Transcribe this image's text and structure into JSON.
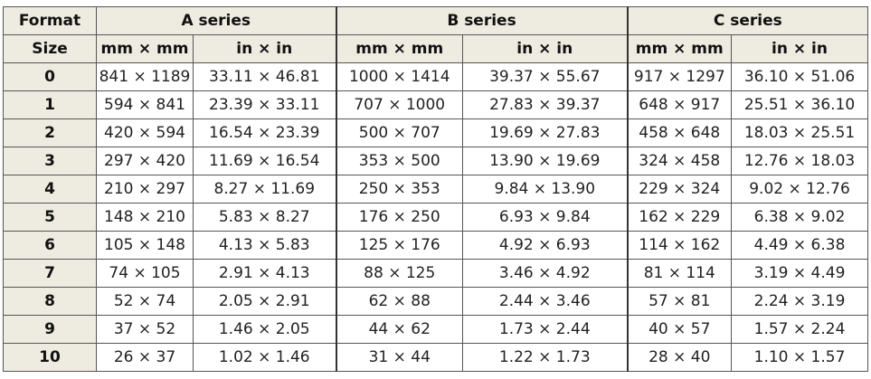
{
  "header": {
    "format": "Format",
    "series": [
      "A series",
      "B series",
      "C series"
    ]
  },
  "subheader": {
    "size": "Size",
    "units": [
      "mm × mm",
      "in × in",
      "mm × mm",
      "in × in",
      "mm × mm",
      "in × in"
    ]
  },
  "rows": [
    [
      "0",
      "841 × 1189",
      "33.11 × 46.81",
      "1000 × 1414",
      "39.37 × 55.67",
      "917 × 1297",
      "36.10 × 51.06"
    ],
    [
      "1",
      "594 × 841",
      "23.39 × 33.11",
      "707 × 1000",
      "27.83 × 39.37",
      "648 × 917",
      "25.51 × 36.10"
    ],
    [
      "2",
      "420 × 594",
      "16.54 × 23.39",
      "500 × 707",
      "19.69 × 27.83",
      "458 × 648",
      "18.03 × 25.51"
    ],
    [
      "3",
      "297 × 420",
      "11.69 × 16.54",
      "353 × 500",
      "13.90 × 19.69",
      "324 × 458",
      "12.76 × 18.03"
    ],
    [
      "4",
      "210 × 297",
      "8.27 × 11.69",
      "250 × 353",
      "9.84 × 13.90",
      "229 × 324",
      "9.02 × 12.76"
    ],
    [
      "5",
      "148 × 210",
      "5.83 × 8.27",
      "176 × 250",
      "6.93 × 9.84",
      "162 × 229",
      "6.38 × 9.02"
    ],
    [
      "6",
      "105 × 148",
      "4.13 × 5.83",
      "125 × 176",
      "4.92 × 6.93",
      "114 × 162",
      "4.49 × 6.38"
    ],
    [
      "7",
      "74 × 105",
      "2.91 × 4.13",
      "88 × 125",
      "3.46 × 4.92",
      "81 × 114",
      "3.19 × 4.49"
    ],
    [
      "8",
      "52 × 74",
      "2.05 × 2.91",
      "62 × 88",
      "2.44 × 3.46",
      "57 × 81",
      "2.24 × 3.19"
    ],
    [
      "9",
      "37 × 52",
      "1.46 × 2.05",
      "44 × 62",
      "1.73 × 2.44",
      "40 × 57",
      "1.57 × 2.24"
    ],
    [
      "10",
      "26 × 37",
      "1.02 × 1.46",
      "31 × 44",
      "1.22 × 1.73",
      "28 × 40",
      "1.10 × 1.57"
    ]
  ]
}
